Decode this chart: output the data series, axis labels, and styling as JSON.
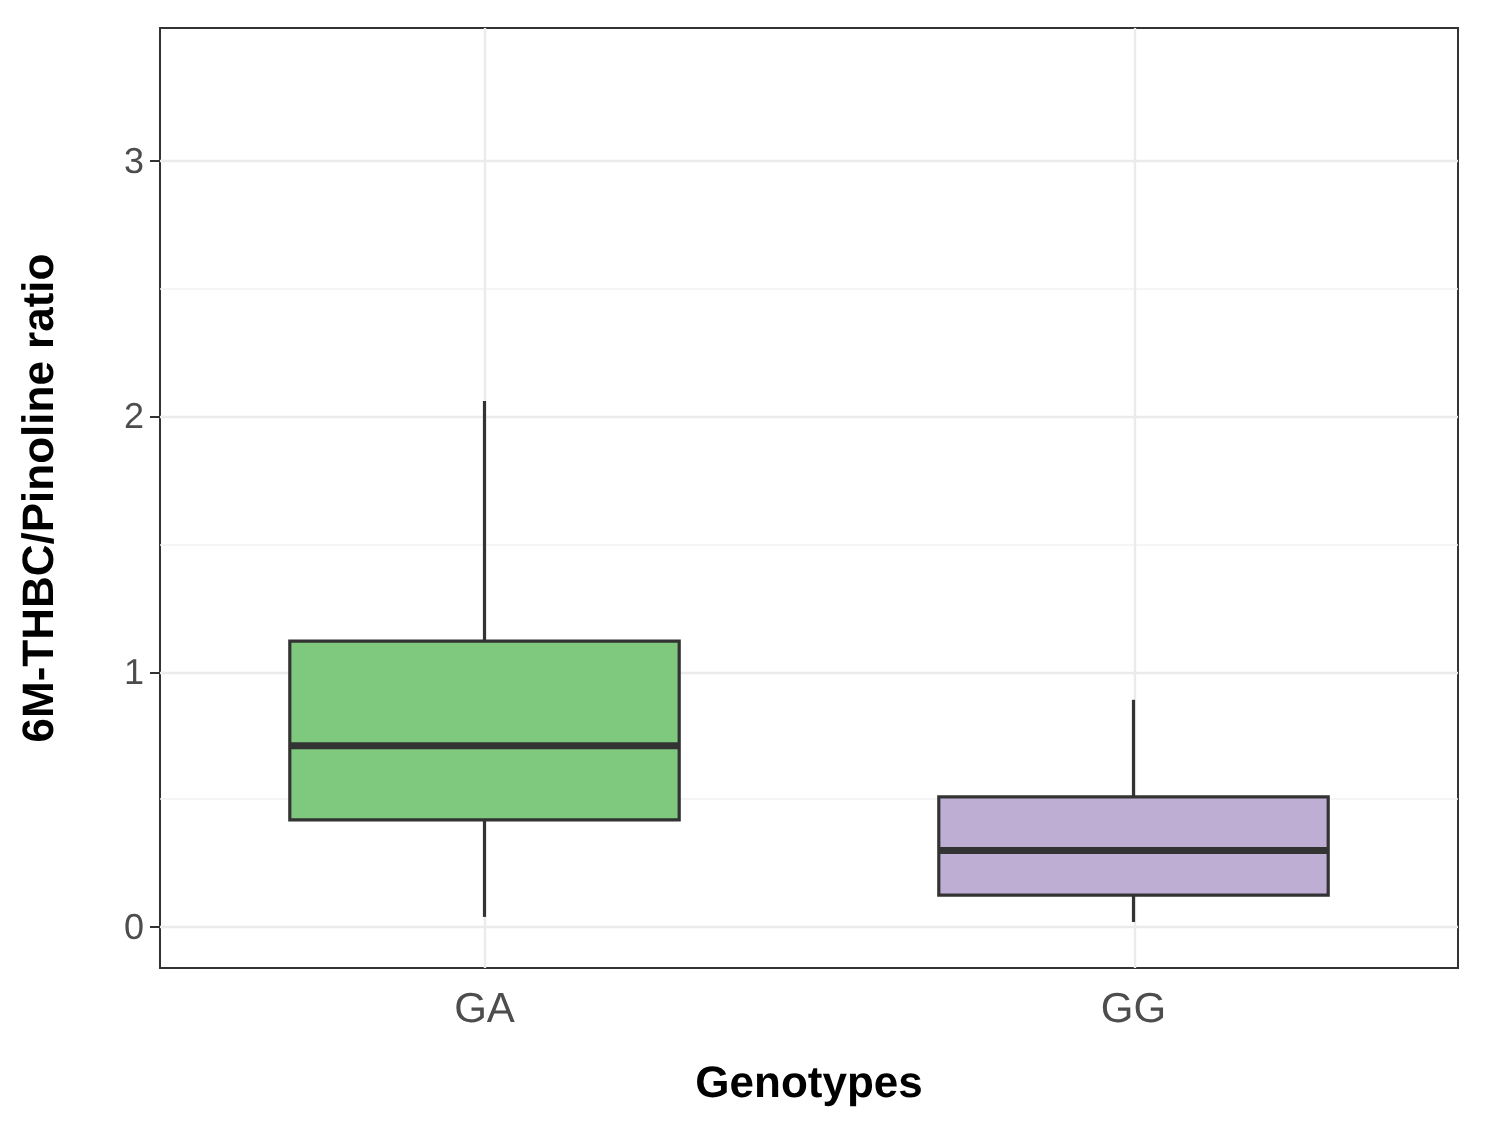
{
  "chart_data": {
    "type": "box",
    "xlabel": "Genotypes",
    "ylabel": "6M-THBC/Pinoline ratio",
    "categories": [
      "GA",
      "GG"
    ],
    "colors": [
      "#7fc97f",
      "#beaed4"
    ],
    "boxes": [
      {
        "low": 0.04,
        "q1": 0.42,
        "median": 0.71,
        "q3": 1.12,
        "high": 2.06
      },
      {
        "low": 0.02,
        "q1": 0.125,
        "median": 0.3,
        "q3": 0.51,
        "high": 0.89
      }
    ],
    "ylim": [
      -0.16,
      3.52
    ],
    "yticks": [
      0,
      1,
      2,
      3
    ],
    "grid": true
  }
}
